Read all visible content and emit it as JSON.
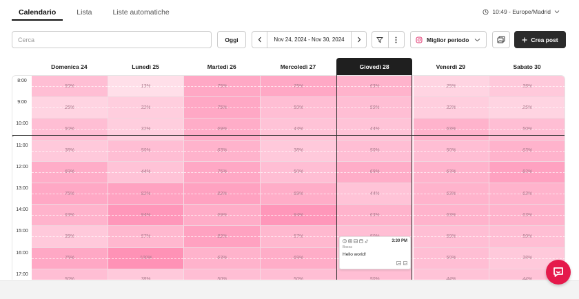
{
  "tabs": [
    {
      "label": "Calendario",
      "active": true
    },
    {
      "label": "Lista",
      "active": false
    },
    {
      "label": "Liste automatiche",
      "active": false
    }
  ],
  "timezone": "10:49 - Europe/Madrid",
  "toolbar": {
    "search_placeholder": "Cerca",
    "today_label": "Oggi",
    "date_range": "Nov 24, 2024 - Nov 30, 2024",
    "best_period_label": "Miglior periodo",
    "create_label": "Crea post"
  },
  "days": [
    {
      "label": "Domenica 24",
      "today": false
    },
    {
      "label": "Lunedì 25",
      "today": false
    },
    {
      "label": "Martedì 26",
      "today": false
    },
    {
      "label": "Mercoledì 27",
      "today": false
    },
    {
      "label": "Giovedì 28",
      "today": true
    },
    {
      "label": "Venerdì 29",
      "today": false
    },
    {
      "label": "Sabato 30",
      "today": false
    }
  ],
  "hours": [
    "8:00",
    "9:00",
    "10:00",
    "11:00",
    "12:00",
    "13:00",
    "14:00",
    "15:00",
    "16:00",
    "17:00"
  ],
  "heatmap": [
    [
      "50%",
      "13%",
      "75%",
      "75%",
      "63%",
      "25%",
      "38%"
    ],
    [
      "25%",
      "32%",
      "75%",
      "50%",
      "50%",
      "32%",
      "25%"
    ],
    [
      "50%",
      "32%",
      "69%",
      "44%",
      "44%",
      "63%",
      "50%"
    ],
    [
      "38%",
      "50%",
      "63%",
      "38%",
      "50%",
      "50%",
      "63%"
    ],
    [
      "69%",
      "44%",
      "75%",
      "50%",
      "69%",
      "63%",
      "82%"
    ],
    [
      "75%",
      "82%",
      "82%",
      "69%",
      "44%",
      "63%",
      "63%"
    ],
    [
      "63%",
      "94%",
      "69%",
      "94%",
      "63%",
      "63%",
      "63%"
    ],
    [
      "38%",
      "57%",
      "82%",
      "57%",
      "50%",
      "50%",
      "50%"
    ],
    [
      "75%",
      "100%",
      "63%",
      "69%",
      "38%",
      "50%",
      "38%"
    ],
    [
      "50%",
      "38%",
      "50%",
      "50%",
      "50%",
      "44%",
      "44%"
    ]
  ],
  "post": {
    "time": "3:30 PM",
    "status": "Bozza",
    "text": "Hello world!"
  },
  "colors": {
    "accent": "#e5194b",
    "heat_high": "#ff93b5",
    "heat_low": "#ffe6ee"
  }
}
